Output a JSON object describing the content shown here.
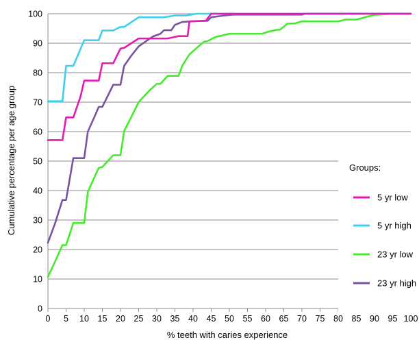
{
  "chart_data": {
    "type": "line",
    "title": "",
    "xlabel": "% teeth with caries experience",
    "ylabel": "Cumulative percentage per age group",
    "xlim": [
      0,
      100
    ],
    "ylim": [
      0,
      100
    ],
    "x_ticks": [
      0,
      5,
      10,
      15,
      20,
      25,
      30,
      35,
      40,
      45,
      50,
      55,
      60,
      65,
      70,
      75,
      80,
      85,
      90,
      95,
      100
    ],
    "y_ticks": [
      0,
      10,
      20,
      30,
      40,
      50,
      60,
      70,
      80,
      90,
      100
    ],
    "grid": "horizontal",
    "legend": {
      "title": "Groups:",
      "placement": "right"
    },
    "series": [
      {
        "name": "5 yr low",
        "color": "#e619b4",
        "points": [
          [
            0,
            57.1
          ],
          [
            4,
            57.1
          ],
          [
            5,
            64.8
          ],
          [
            7,
            64.8
          ],
          [
            9,
            72
          ],
          [
            10,
            77.3
          ],
          [
            14,
            77.3
          ],
          [
            15,
            83.2
          ],
          [
            18,
            83.2
          ],
          [
            20,
            88.2
          ],
          [
            21,
            88.4
          ],
          [
            25,
            91.6
          ],
          [
            27,
            91.6
          ],
          [
            33,
            91.6
          ],
          [
            36,
            92.4
          ],
          [
            38.5,
            92.4
          ],
          [
            39,
            97.4
          ],
          [
            43.5,
            97.6
          ],
          [
            45,
            100
          ],
          [
            100,
            100
          ]
        ]
      },
      {
        "name": "5 yr high",
        "color": "#3ccff0",
        "points": [
          [
            0,
            70.3
          ],
          [
            4,
            70.3
          ],
          [
            5,
            82.3
          ],
          [
            7,
            82.3
          ],
          [
            10,
            91
          ],
          [
            14,
            91
          ],
          [
            15,
            94.3
          ],
          [
            18,
            94.3
          ],
          [
            20,
            95.5
          ],
          [
            21,
            95.5
          ],
          [
            25,
            98.8
          ],
          [
            32,
            98.8
          ],
          [
            35,
            99.4
          ],
          [
            38,
            99.4
          ],
          [
            41,
            100
          ],
          [
            100,
            100
          ]
        ]
      },
      {
        "name": "23 yr low",
        "color": "#44ec2c",
        "points": [
          [
            0,
            10.7
          ],
          [
            2,
            16
          ],
          [
            4,
            21.5
          ],
          [
            5,
            21.5
          ],
          [
            7,
            29
          ],
          [
            10,
            29
          ],
          [
            11,
            39.6
          ],
          [
            14,
            47.7
          ],
          [
            15,
            48
          ],
          [
            18,
            52
          ],
          [
            20,
            52
          ],
          [
            21,
            60.2
          ],
          [
            23,
            65
          ],
          [
            25,
            70
          ],
          [
            28,
            74
          ],
          [
            30,
            76.2
          ],
          [
            31,
            76.2
          ],
          [
            33,
            78.9
          ],
          [
            36,
            78.9
          ],
          [
            37,
            82.3
          ],
          [
            39,
            86.2
          ],
          [
            40,
            87.3
          ],
          [
            43,
            90.5
          ],
          [
            44,
            90.7
          ],
          [
            46,
            92
          ],
          [
            48,
            92.6
          ],
          [
            50,
            93.2
          ],
          [
            59,
            93.2
          ],
          [
            61,
            94
          ],
          [
            63,
            94.5
          ],
          [
            64,
            94.6
          ],
          [
            66,
            96.6
          ],
          [
            68,
            96.7
          ],
          [
            70,
            97.4
          ],
          [
            80,
            97.4
          ],
          [
            82,
            98
          ],
          [
            85,
            98
          ],
          [
            88,
            99
          ],
          [
            90,
            99.6
          ],
          [
            95,
            100
          ],
          [
            100,
            100
          ]
        ]
      },
      {
        "name": "23 yr high",
        "color": "#7952a0",
        "points": [
          [
            0,
            22.3
          ],
          [
            2,
            29
          ],
          [
            4,
            36.8
          ],
          [
            5,
            36.8
          ],
          [
            7,
            51
          ],
          [
            10,
            51
          ],
          [
            11,
            60
          ],
          [
            13,
            65.5
          ],
          [
            14,
            68.4
          ],
          [
            15,
            68.4
          ],
          [
            18,
            75.9
          ],
          [
            20,
            75.9
          ],
          [
            21,
            82.3
          ],
          [
            23,
            85.8
          ],
          [
            25,
            88.9
          ],
          [
            28,
            91.5
          ],
          [
            29,
            92.3
          ],
          [
            31,
            93.2
          ],
          [
            32,
            94.4
          ],
          [
            34,
            94.4
          ],
          [
            35,
            96.2
          ],
          [
            37,
            97.2
          ],
          [
            41,
            97.5
          ],
          [
            44,
            97.6
          ],
          [
            45,
            98.8
          ],
          [
            48,
            99.3
          ],
          [
            51,
            99.7
          ],
          [
            70,
            99.7
          ],
          [
            71,
            100
          ],
          [
            100,
            100
          ]
        ]
      }
    ]
  }
}
